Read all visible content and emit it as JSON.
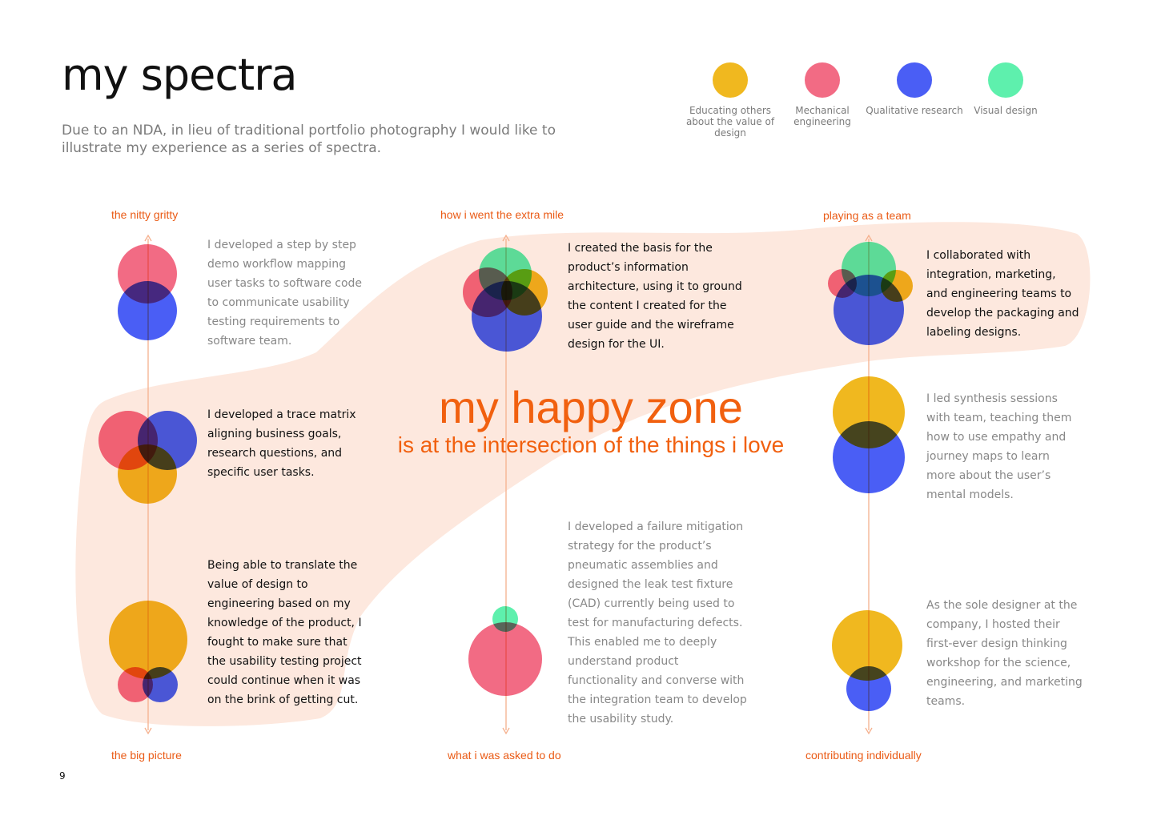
{
  "header": {
    "title": "my spectra",
    "subtitle": "Due to an NDA, in lieu of traditional portfolio photography I would like to illustrate my experience as a series of spectra."
  },
  "legend": [
    {
      "label": "Educating others about the value of design",
      "color": "#f0b81f",
      "icon": "yellow-circle-icon"
    },
    {
      "label": "Mechanical engineering",
      "color": "#f26b84",
      "icon": "pink-circle-icon"
    },
    {
      "label": "Qualitative research",
      "color": "#4a5ef5",
      "icon": "blue-circle-icon"
    },
    {
      "label": "Visual design",
      "color": "#5ef0ad",
      "icon": "green-circle-icon"
    }
  ],
  "colors": {
    "accent": "#ea5b16",
    "zone": "#fde8de",
    "axis": "#f5b08d"
  },
  "spectra": [
    {
      "top_label": "the nitty gritty",
      "bottom_label": "the big picture",
      "items": [
        {
          "text": "I developed a step by step demo workflow mapping user tasks to software code to communicate usability testing requirements to software team.",
          "in_zone": false
        },
        {
          "text": "I developed a trace matrix aligning business goals, research questions, and specific user tasks.",
          "in_zone": true
        },
        {
          "text": "Being able to translate the value of design to engineering based on my knowledge of the product, I fought to make sure that the usability testing project could continue when it was on the brink of getting cut.",
          "in_zone": true
        }
      ]
    },
    {
      "top_label": "how i went the extra mile",
      "bottom_label": "what i was asked to do",
      "items": [
        {
          "text": "I created the basis for the product’s information architecture, using it to ground the content I created for the user guide and the wireframe design for the UI.",
          "in_zone": true
        },
        {
          "text": "I developed a failure mitigation strategy for the product’s pneumatic assemblies and designed the leak test fixture (CAD) currently being used to test for manufacturing defects. This enabled me to deeply understand product functionality and converse with the integration team to develop the usability study.",
          "in_zone": false
        }
      ]
    },
    {
      "top_label": "playing as a team",
      "bottom_label": "contributing individually",
      "items": [
        {
          "text": "I collaborated with integration, marketing, and engineering teams to develop the packaging and labeling designs.",
          "in_zone": true
        },
        {
          "text": "I led synthesis sessions with team, teaching them how to use empathy and journey maps to learn more about the user’s mental models.",
          "in_zone": false
        },
        {
          "text": "As the sole designer at the company, I hosted their first-ever design thinking workshop for the science, engineering, and marketing teams.",
          "in_zone": false
        }
      ]
    }
  ],
  "zone": {
    "title": "my happy zone",
    "subtitle": "is at the intersection of the things i love"
  },
  "page_number": "9"
}
